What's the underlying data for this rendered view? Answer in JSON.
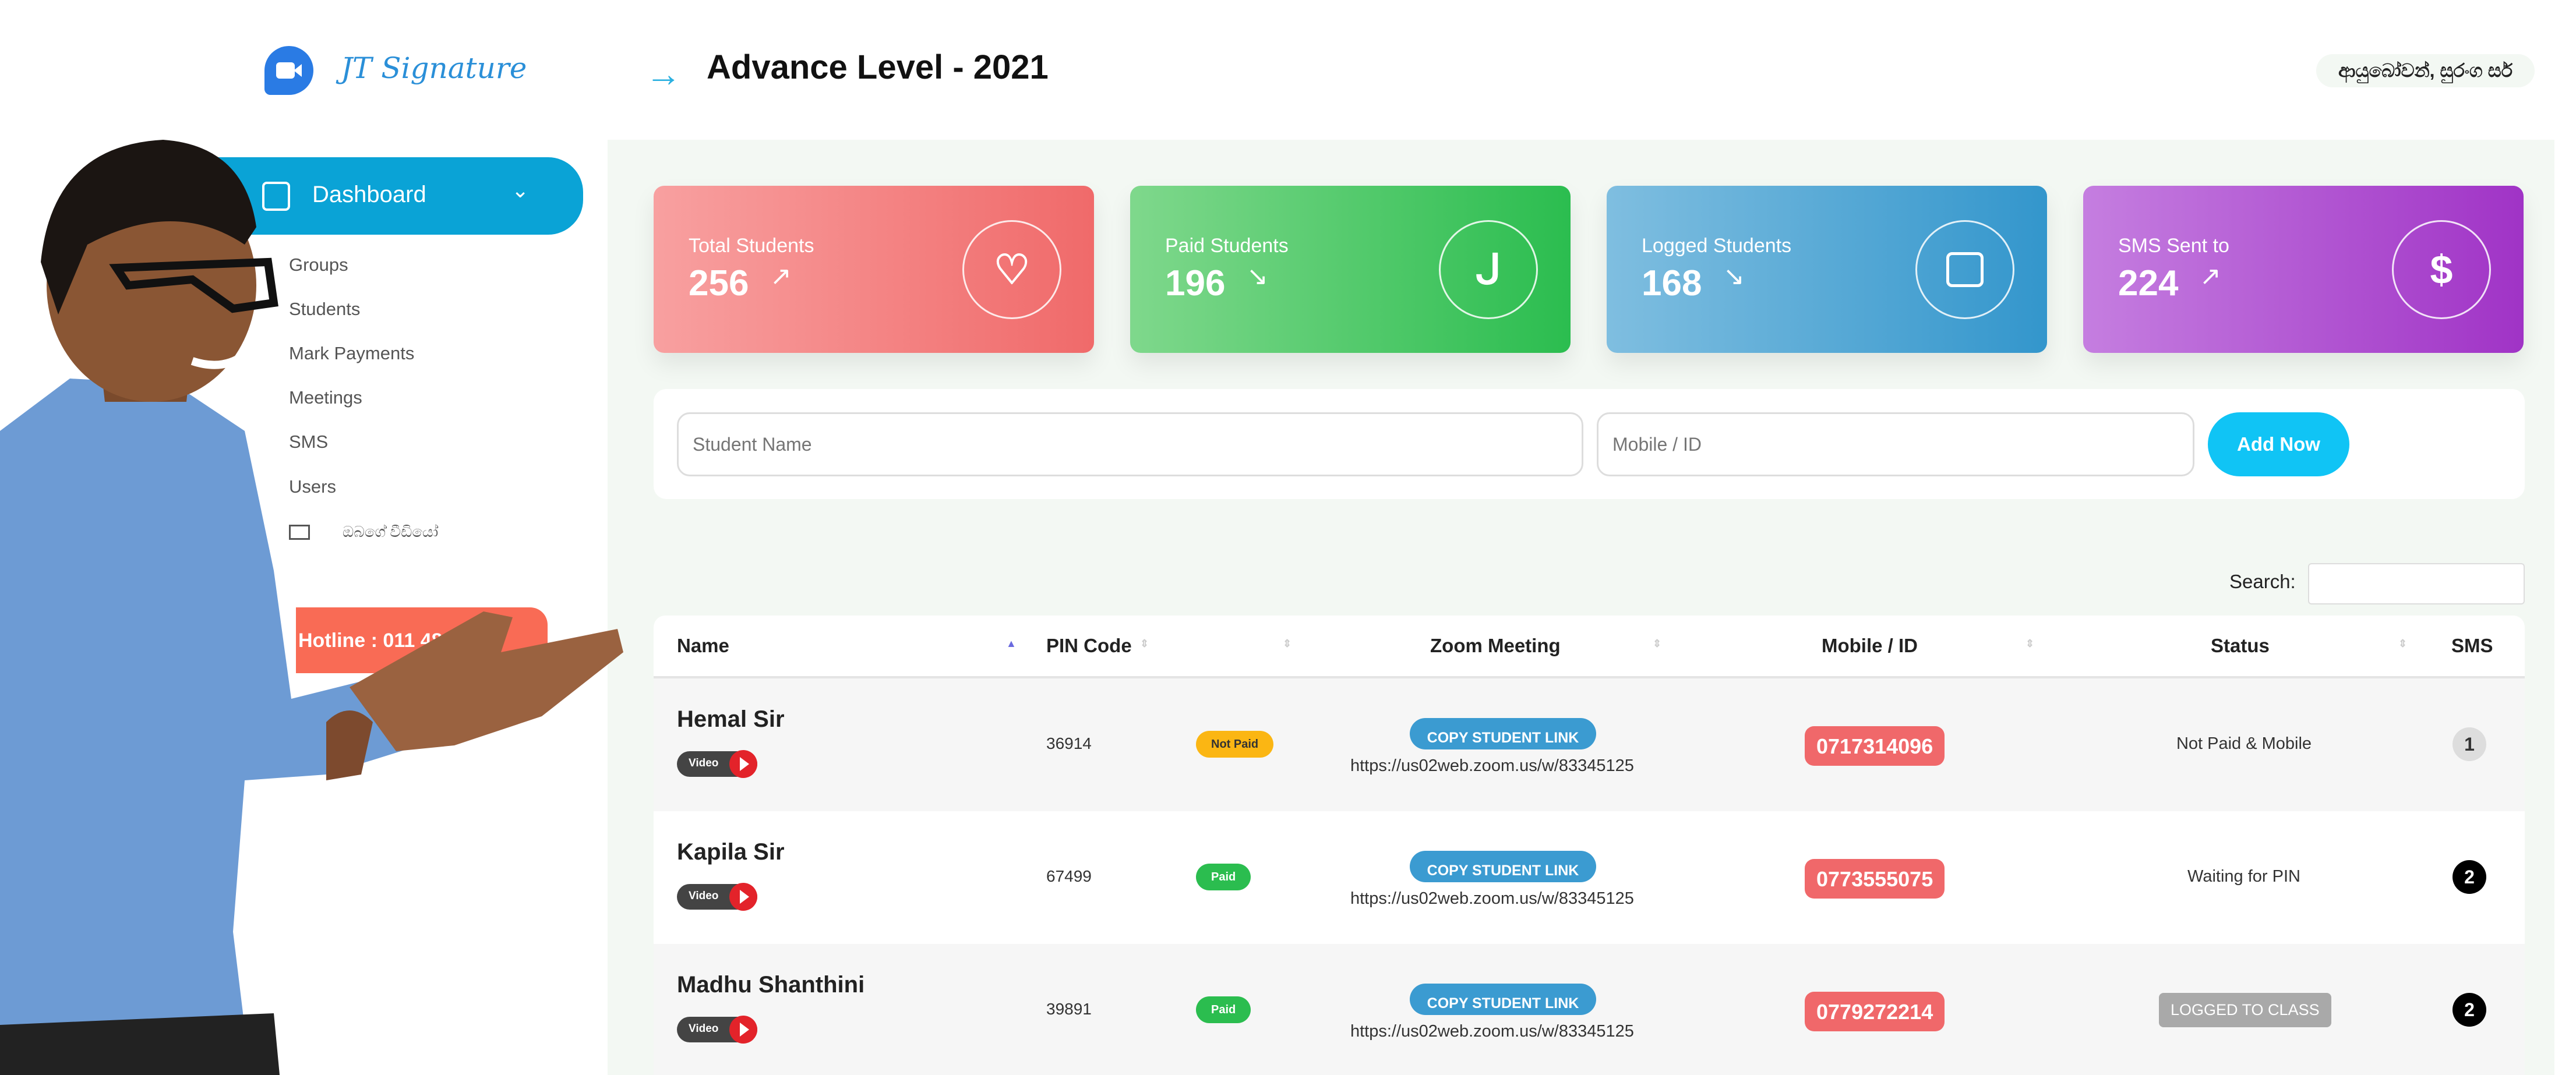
{
  "brand": {
    "logo_text": "JT Signature",
    "logo_icon": "video-camera-icon"
  },
  "header": {
    "title": "Advance Level - 2021",
    "greeting": "ආයුබෝවන්, සුරංග සර්"
  },
  "sidebar": {
    "dashboard_label": "Dashboard",
    "items": [
      {
        "label": "Groups"
      },
      {
        "label": "Students"
      },
      {
        "label": "Mark Payments"
      },
      {
        "label": "Meetings"
      },
      {
        "label": "SMS"
      },
      {
        "label": "Users"
      },
      {
        "label": "ඔබගේ වීඩියෝ",
        "icon": "video-icon"
      }
    ],
    "hotline": "Hotline : 011 4848 9"
  },
  "stats": [
    {
      "label": "Total Students",
      "value": "256",
      "icon": "heart-pulse-icon",
      "trend": "up",
      "colors": [
        "#f8a0a0",
        "#f06a6a"
      ]
    },
    {
      "label": "Paid Students",
      "value": "196",
      "icon": "stethoscope-icon",
      "trend": "down",
      "colors": [
        "#7fd88c",
        "#2bbd4f"
      ]
    },
    {
      "label": "Logged Students",
      "value": "168",
      "icon": "calendar-icon",
      "trend": "down",
      "colors": [
        "#7fbee0",
        "#3396cc"
      ]
    },
    {
      "label": "SMS Sent to",
      "value": "224",
      "icon": "dollar-icon",
      "trend": "up",
      "colors": [
        "#c57ee0",
        "#a033c6"
      ]
    }
  ],
  "form": {
    "name_placeholder": "Student Name",
    "mobile_placeholder": "Mobile / ID",
    "add_label": "Add Now"
  },
  "search": {
    "label": "Search:",
    "value": ""
  },
  "table": {
    "columns": [
      "Name",
      "PIN Code",
      "",
      "Zoom Meeting",
      "Mobile / ID",
      "Status",
      "SMS"
    ],
    "video_label": "Video",
    "copy_label": "COPY STUDENT LINK",
    "rows": [
      {
        "name": "Hemal Sir",
        "pin": "36914",
        "payment": "Not Paid",
        "payment_color": "#fbb613",
        "url": "https://us02web.zoom.us/w/83345125",
        "mobile": "0717314096",
        "status": "Not Paid & Mobile",
        "sms": "1"
      },
      {
        "name": "Kapila Sir",
        "pin": "67499",
        "payment": "Paid",
        "payment_color": "#2bbd4f",
        "url": "https://us02web.zoom.us/w/83345125",
        "mobile": "0773555075",
        "status": "Waiting for PIN",
        "sms": "2"
      },
      {
        "name": "Madhu Shanthini",
        "pin": "39891",
        "payment": "Paid",
        "payment_color": "#2bbd4f",
        "url": "https://us02web.zoom.us/w/83345125",
        "mobile": "0779272214",
        "status": "LOGGED TO CLASS",
        "sms": "2"
      }
    ]
  }
}
